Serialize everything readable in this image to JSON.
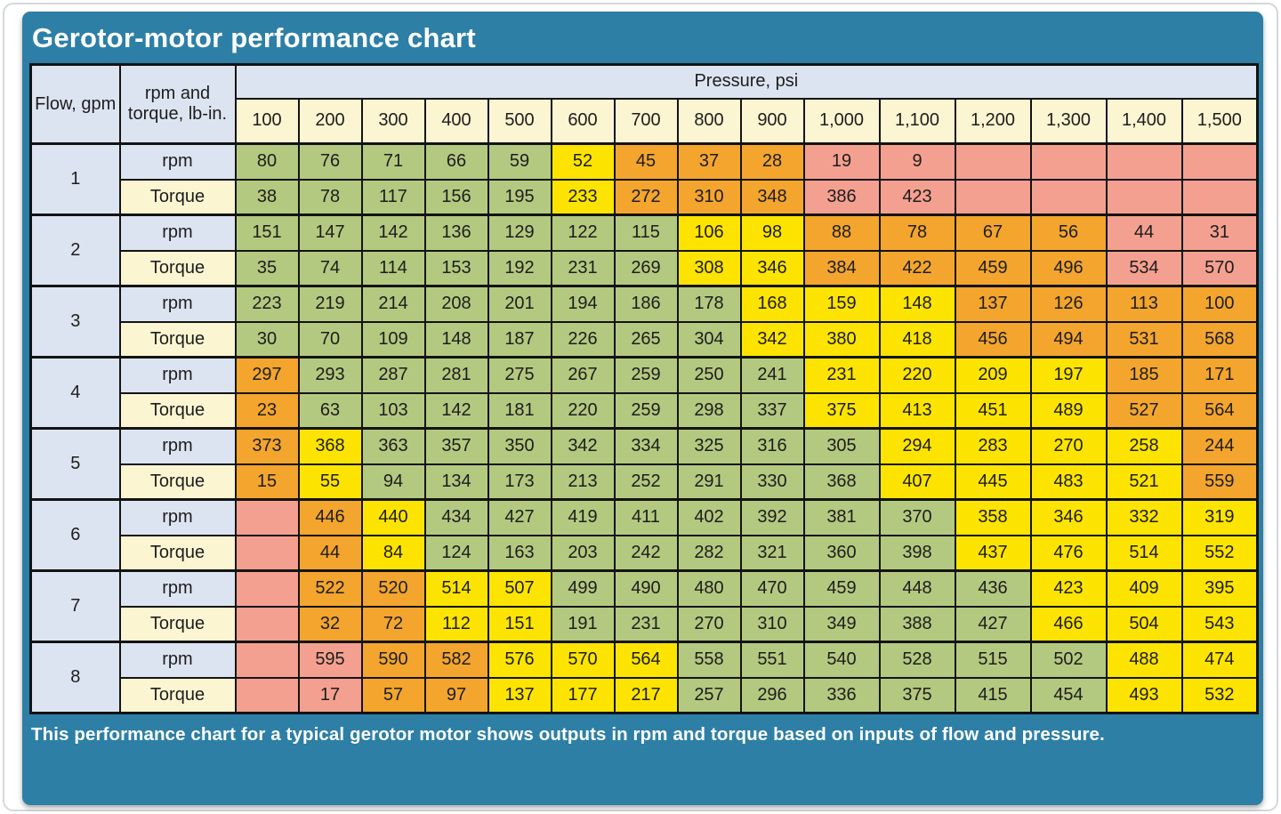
{
  "title": "Gerotor-motor performance chart",
  "footer": "This performance chart for a typical gerotor motor shows outputs in rpm and torque based on inputs of flow and pressure.",
  "header": {
    "flow_label": "Flow, gpm",
    "rpm_torque_label": "rpm and torque, lb-in.",
    "pressure_label": "Pressure, psi",
    "pressure_columns": [
      "100",
      "200",
      "300",
      "400",
      "500",
      "600",
      "700",
      "800",
      "900",
      "1,000",
      "1,100",
      "1,200",
      "1,300",
      "1,400",
      "1,500"
    ]
  },
  "row_labels": {
    "rpm": "rpm",
    "torque": "Torque"
  },
  "colors": {
    "teal_background": "#2d7fa6",
    "header_blue": "#dde4f1",
    "header_cream": "#fbf5d2",
    "cell_green": "#b4c980",
    "cell_yellow": "#fce400",
    "cell_orange": "#f3a52e",
    "cell_pink": "#f4a090",
    "grid_line": "#131313",
    "title_text": "#ffffff"
  },
  "chart_data": {
    "type": "table",
    "title": "Gerotor-motor performance chart",
    "x_label": "Pressure, psi",
    "row_axis_label": "Flow, gpm",
    "value_units": {
      "rpm": "rpm",
      "torque": "lb-in."
    },
    "pressures": [
      100,
      200,
      300,
      400,
      500,
      600,
      700,
      800,
      900,
      1000,
      1100,
      1200,
      1300,
      1400,
      1500
    ],
    "color_legend": {
      "G": "green",
      "Y": "yellow",
      "O": "orange",
      "P": "pink"
    },
    "rows": [
      {
        "flow": 1,
        "rpm": [
          80,
          76,
          71,
          66,
          59,
          52,
          45,
          37,
          28,
          19,
          9,
          null,
          null,
          null,
          null
        ],
        "rpm_colors": [
          "G",
          "G",
          "G",
          "G",
          "G",
          "Y",
          "O",
          "O",
          "O",
          "P",
          "P",
          "P",
          "P",
          "P",
          "P"
        ],
        "torque": [
          38,
          78,
          117,
          156,
          195,
          233,
          272,
          310,
          348,
          386,
          423,
          null,
          null,
          null,
          null
        ],
        "torque_colors": [
          "G",
          "G",
          "G",
          "G",
          "G",
          "Y",
          "O",
          "O",
          "O",
          "P",
          "P",
          "P",
          "P",
          "P",
          "P"
        ]
      },
      {
        "flow": 2,
        "rpm": [
          151,
          147,
          142,
          136,
          129,
          122,
          115,
          106,
          98,
          88,
          78,
          67,
          56,
          44,
          31
        ],
        "rpm_colors": [
          "G",
          "G",
          "G",
          "G",
          "G",
          "G",
          "G",
          "Y",
          "Y",
          "O",
          "O",
          "O",
          "O",
          "P",
          "P"
        ],
        "torque": [
          35,
          74,
          114,
          153,
          192,
          231,
          269,
          308,
          346,
          384,
          422,
          459,
          496,
          534,
          570
        ],
        "torque_colors": [
          "G",
          "G",
          "G",
          "G",
          "G",
          "G",
          "G",
          "Y",
          "Y",
          "O",
          "O",
          "O",
          "O",
          "P",
          "P"
        ]
      },
      {
        "flow": 3,
        "rpm": [
          223,
          219,
          214,
          208,
          201,
          194,
          186,
          178,
          168,
          159,
          148,
          137,
          126,
          113,
          100
        ],
        "rpm_colors": [
          "G",
          "G",
          "G",
          "G",
          "G",
          "G",
          "G",
          "G",
          "Y",
          "Y",
          "Y",
          "O",
          "O",
          "O",
          "O"
        ],
        "torque": [
          30,
          70,
          109,
          148,
          187,
          226,
          265,
          304,
          342,
          380,
          418,
          456,
          494,
          531,
          568
        ],
        "torque_colors": [
          "G",
          "G",
          "G",
          "G",
          "G",
          "G",
          "G",
          "G",
          "Y",
          "Y",
          "Y",
          "O",
          "O",
          "O",
          "O"
        ]
      },
      {
        "flow": 4,
        "rpm": [
          297,
          293,
          287,
          281,
          275,
          267,
          259,
          250,
          241,
          231,
          220,
          209,
          197,
          185,
          171
        ],
        "rpm_colors": [
          "O",
          "G",
          "G",
          "G",
          "G",
          "G",
          "G",
          "G",
          "G",
          "Y",
          "Y",
          "Y",
          "Y",
          "O",
          "O"
        ],
        "torque": [
          23,
          63,
          103,
          142,
          181,
          220,
          259,
          298,
          337,
          375,
          413,
          451,
          489,
          527,
          564
        ],
        "torque_colors": [
          "O",
          "G",
          "G",
          "G",
          "G",
          "G",
          "G",
          "G",
          "G",
          "Y",
          "Y",
          "Y",
          "Y",
          "O",
          "O"
        ]
      },
      {
        "flow": 5,
        "rpm": [
          373,
          368,
          363,
          357,
          350,
          342,
          334,
          325,
          316,
          305,
          294,
          283,
          270,
          258,
          244
        ],
        "rpm_colors": [
          "O",
          "Y",
          "G",
          "G",
          "G",
          "G",
          "G",
          "G",
          "G",
          "G",
          "Y",
          "Y",
          "Y",
          "Y",
          "O"
        ],
        "torque": [
          15,
          55,
          94,
          134,
          173,
          213,
          252,
          291,
          330,
          368,
          407,
          445,
          483,
          521,
          559
        ],
        "torque_colors": [
          "O",
          "Y",
          "G",
          "G",
          "G",
          "G",
          "G",
          "G",
          "G",
          "G",
          "Y",
          "Y",
          "Y",
          "Y",
          "O"
        ]
      },
      {
        "flow": 6,
        "rpm": [
          null,
          446,
          440,
          434,
          427,
          419,
          411,
          402,
          392,
          381,
          370,
          358,
          346,
          332,
          319
        ],
        "rpm_colors": [
          "P",
          "O",
          "Y",
          "G",
          "G",
          "G",
          "G",
          "G",
          "G",
          "G",
          "G",
          "Y",
          "Y",
          "Y",
          "Y"
        ],
        "torque": [
          null,
          44,
          84,
          124,
          163,
          203,
          242,
          282,
          321,
          360,
          398,
          437,
          476,
          514,
          552
        ],
        "torque_colors": [
          "P",
          "O",
          "Y",
          "G",
          "G",
          "G",
          "G",
          "G",
          "G",
          "G",
          "G",
          "Y",
          "Y",
          "Y",
          "Y"
        ]
      },
      {
        "flow": 7,
        "rpm": [
          null,
          522,
          520,
          514,
          507,
          499,
          490,
          480,
          470,
          459,
          448,
          436,
          423,
          409,
          395
        ],
        "rpm_colors": [
          "P",
          "O",
          "O",
          "Y",
          "Y",
          "G",
          "G",
          "G",
          "G",
          "G",
          "G",
          "G",
          "Y",
          "Y",
          "Y"
        ],
        "torque": [
          null,
          32,
          72,
          112,
          151,
          191,
          231,
          270,
          310,
          349,
          388,
          427,
          466,
          504,
          543
        ],
        "torque_colors": [
          "P",
          "O",
          "O",
          "Y",
          "Y",
          "G",
          "G",
          "G",
          "G",
          "G",
          "G",
          "G",
          "Y",
          "Y",
          "Y"
        ]
      },
      {
        "flow": 8,
        "rpm": [
          null,
          595,
          590,
          582,
          576,
          570,
          564,
          558,
          551,
          540,
          528,
          515,
          502,
          488,
          474
        ],
        "rpm_colors": [
          "P",
          "P",
          "O",
          "O",
          "Y",
          "Y",
          "Y",
          "G",
          "G",
          "G",
          "G",
          "G",
          "G",
          "Y",
          "Y"
        ],
        "torque": [
          null,
          17,
          57,
          97,
          137,
          177,
          217,
          257,
          296,
          336,
          375,
          415,
          454,
          493,
          532
        ],
        "torque_colors": [
          "P",
          "P",
          "O",
          "O",
          "Y",
          "Y",
          "Y",
          "G",
          "G",
          "G",
          "G",
          "G",
          "G",
          "Y",
          "Y"
        ]
      }
    ]
  }
}
